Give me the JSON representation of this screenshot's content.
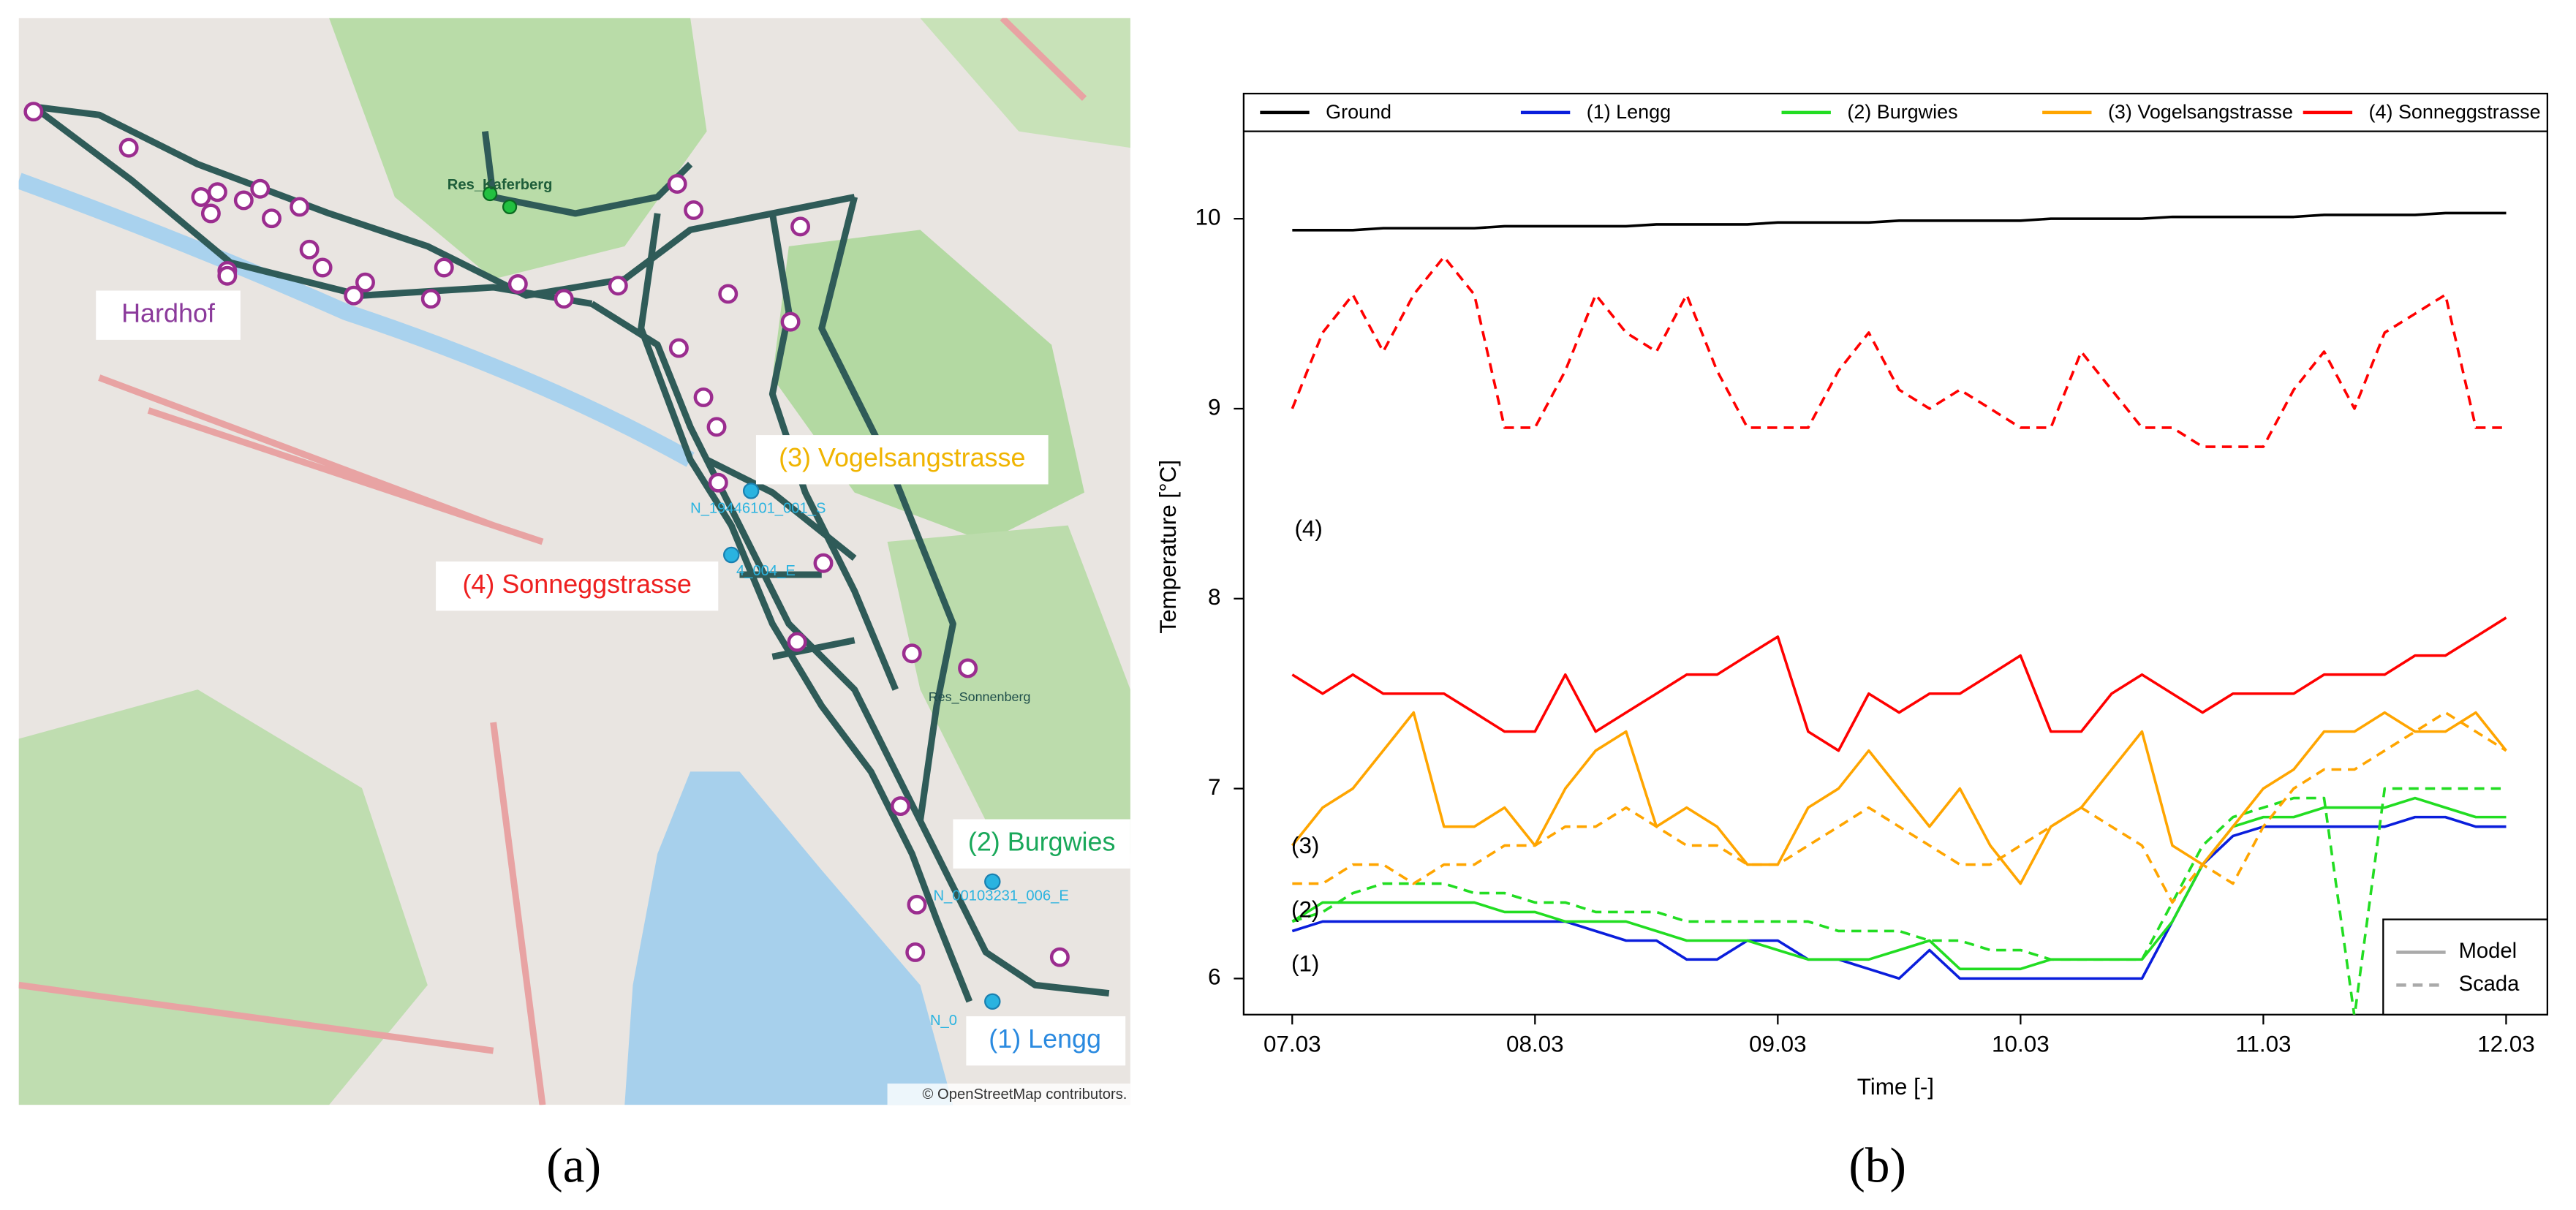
{
  "map": {
    "labels": {
      "hardhof": "Hardhof",
      "vogelsang": "(3) Vogelsangstrasse",
      "sonnegg": "(4) Sonneggstrasse",
      "burgwies": "(2) Burgwies",
      "lengg": "(1) Lengg"
    },
    "nodes": {
      "res_kaferberg": "Res_Kaferberg",
      "res_sonnenberg": "Res_Sonnenberg",
      "n1": "N_19446101_001_S",
      "n2": "4_004_E",
      "n3": "N_00103231_006_E",
      "n4": "N_0"
    },
    "attribution": "© OpenStreetMap contributors."
  },
  "captions": {
    "a": "(a)",
    "b": "(b)"
  },
  "chart_data": {
    "type": "line",
    "x_label": "Time [-]",
    "y_label": "Temperature [°C]",
    "x": [
      7.0,
      7.125,
      7.25,
      7.375,
      7.5,
      7.625,
      7.75,
      7.875,
      8.0,
      8.125,
      8.25,
      8.375,
      8.5,
      8.625,
      8.75,
      8.875,
      9.0,
      9.125,
      9.25,
      9.375,
      9.5,
      9.625,
      9.75,
      9.875,
      10.0,
      10.125,
      10.25,
      10.375,
      10.5,
      10.625,
      10.75,
      10.875,
      11.0,
      11.125,
      11.25,
      11.375,
      11.5,
      11.625,
      11.75,
      11.875,
      12.0
    ],
    "xlim": [
      6.8,
      12.17
    ],
    "xticks": [
      {
        "value": 7,
        "label": "07.03"
      },
      {
        "value": 8,
        "label": "08.03"
      },
      {
        "value": 9,
        "label": "09.03"
      },
      {
        "value": 10,
        "label": "10.03"
      },
      {
        "value": 11,
        "label": "11.03"
      },
      {
        "value": 12,
        "label": "12.03"
      }
    ],
    "ylim": [
      5.81,
      10.46
    ],
    "yticks": [
      6,
      7,
      8,
      9,
      10
    ],
    "legend": "top",
    "series": [
      {
        "name": "Ground",
        "color": "#000000",
        "model": [
          9.94,
          9.94,
          9.94,
          9.95,
          9.95,
          9.95,
          9.95,
          9.96,
          9.96,
          9.96,
          9.96,
          9.96,
          9.97,
          9.97,
          9.97,
          9.97,
          9.98,
          9.98,
          9.98,
          9.98,
          9.99,
          9.99,
          9.99,
          9.99,
          9.99,
          10,
          10,
          10,
          10,
          10.01,
          10.01,
          10.01,
          10.01,
          10.01,
          10.02,
          10.02,
          10.02,
          10.02,
          10.03,
          10.03,
          10.03
        ]
      },
      {
        "name": "(1) Lengg",
        "color": "#0a1edc",
        "model": [
          6.25,
          6.3,
          6.3,
          6.3,
          6.3,
          6.3,
          6.3,
          6.3,
          6.3,
          6.3,
          6.25,
          6.2,
          6.2,
          6.1,
          6.1,
          6.2,
          6.2,
          6.1,
          6.1,
          6.05,
          6.0,
          6.15,
          6.0,
          6.0,
          6.0,
          6.0,
          6.0,
          6.0,
          6.0,
          6.3,
          6.6,
          6.75,
          6.8,
          6.8,
          6.8,
          6.8,
          6.8,
          6.85,
          6.85,
          6.8,
          6.8
        ]
      },
      {
        "name": "(2) Burgwies",
        "color": "#22dd22",
        "model": [
          6.3,
          6.4,
          6.4,
          6.4,
          6.4,
          6.4,
          6.4,
          6.35,
          6.35,
          6.3,
          6.3,
          6.3,
          6.25,
          6.2,
          6.2,
          6.2,
          6.15,
          6.1,
          6.1,
          6.1,
          6.15,
          6.2,
          6.05,
          6.05,
          6.05,
          6.1,
          6.1,
          6.1,
          6.1,
          6.3,
          6.6,
          6.8,
          6.85,
          6.85,
          6.9,
          6.9,
          6.9,
          6.95,
          6.9,
          6.85,
          6.85
        ],
        "scada": [
          6.3,
          6.35,
          6.45,
          6.5,
          6.5,
          6.5,
          6.45,
          6.45,
          6.4,
          6.4,
          6.35,
          6.35,
          6.35,
          6.3,
          6.3,
          6.3,
          6.3,
          6.3,
          6.25,
          6.25,
          6.25,
          6.2,
          6.2,
          6.15,
          6.15,
          6.1,
          6.1,
          6.1,
          6.1,
          6.4,
          6.7,
          6.85,
          6.9,
          6.95,
          6.95,
          5.8,
          7.0,
          7.0,
          7.0,
          7.0,
          7.0
        ]
      },
      {
        "name": "(3) Vogelsangstrasse",
        "color": "#ffa500",
        "model": [
          6.7,
          6.9,
          7.0,
          7.2,
          7.4,
          6.8,
          6.8,
          6.9,
          6.7,
          7.0,
          7.2,
          7.3,
          6.8,
          6.9,
          6.8,
          6.6,
          6.6,
          6.9,
          7.0,
          7.2,
          7.0,
          6.8,
          7.0,
          6.7,
          6.5,
          6.8,
          6.9,
          7.1,
          7.3,
          6.7,
          6.6,
          6.8,
          7.0,
          7.1,
          7.3,
          7.3,
          7.4,
          7.3,
          7.3,
          7.4,
          7.2
        ],
        "scada": [
          6.5,
          6.5,
          6.6,
          6.6,
          6.5,
          6.6,
          6.6,
          6.7,
          6.7,
          6.8,
          6.8,
          6.9,
          6.8,
          6.7,
          6.7,
          6.6,
          6.6,
          6.7,
          6.8,
          6.9,
          6.8,
          6.7,
          6.6,
          6.6,
          6.7,
          6.8,
          6.9,
          6.8,
          6.7,
          6.4,
          6.6,
          6.5,
          6.8,
          7.0,
          7.1,
          7.1,
          7.2,
          7.3,
          7.4,
          7.3,
          7.2
        ]
      },
      {
        "name": "(4) Sonneggstrasse",
        "color": "#ff0000",
        "model": [
          7.6,
          7.5,
          7.6,
          7.5,
          7.5,
          7.5,
          7.4,
          7.3,
          7.3,
          7.6,
          7.3,
          7.4,
          7.5,
          7.6,
          7.6,
          7.7,
          7.8,
          7.3,
          7.2,
          7.5,
          7.4,
          7.5,
          7.5,
          7.6,
          7.7,
          7.3,
          7.3,
          7.5,
          7.6,
          7.5,
          7.4,
          7.5,
          7.5,
          7.5,
          7.6,
          7.6,
          7.6,
          7.7,
          7.7,
          7.8,
          7.9
        ],
        "scada": [
          9.0,
          9.4,
          9.6,
          9.3,
          9.6,
          9.8,
          9.6,
          8.9,
          8.9,
          9.2,
          9.6,
          9.4,
          9.3,
          9.6,
          9.2,
          8.9,
          8.9,
          8.9,
          9.2,
          9.4,
          9.1,
          9.0,
          9.1,
          9.0,
          8.9,
          8.9,
          9.3,
          9.1,
          8.9,
          8.9,
          8.8,
          8.8,
          8.8,
          9.1,
          9.3,
          9.0,
          9.4,
          9.5,
          9.6,
          8.9,
          8.9
        ]
      }
    ],
    "line_styles": [
      {
        "name": "Model",
        "key": "model",
        "dash": false
      },
      {
        "name": "Scada",
        "key": "scada",
        "dash": true
      }
    ],
    "style_legend": "bottom right",
    "annotations": [
      "(1)",
      "(2)",
      "(3)",
      "(4)"
    ]
  }
}
